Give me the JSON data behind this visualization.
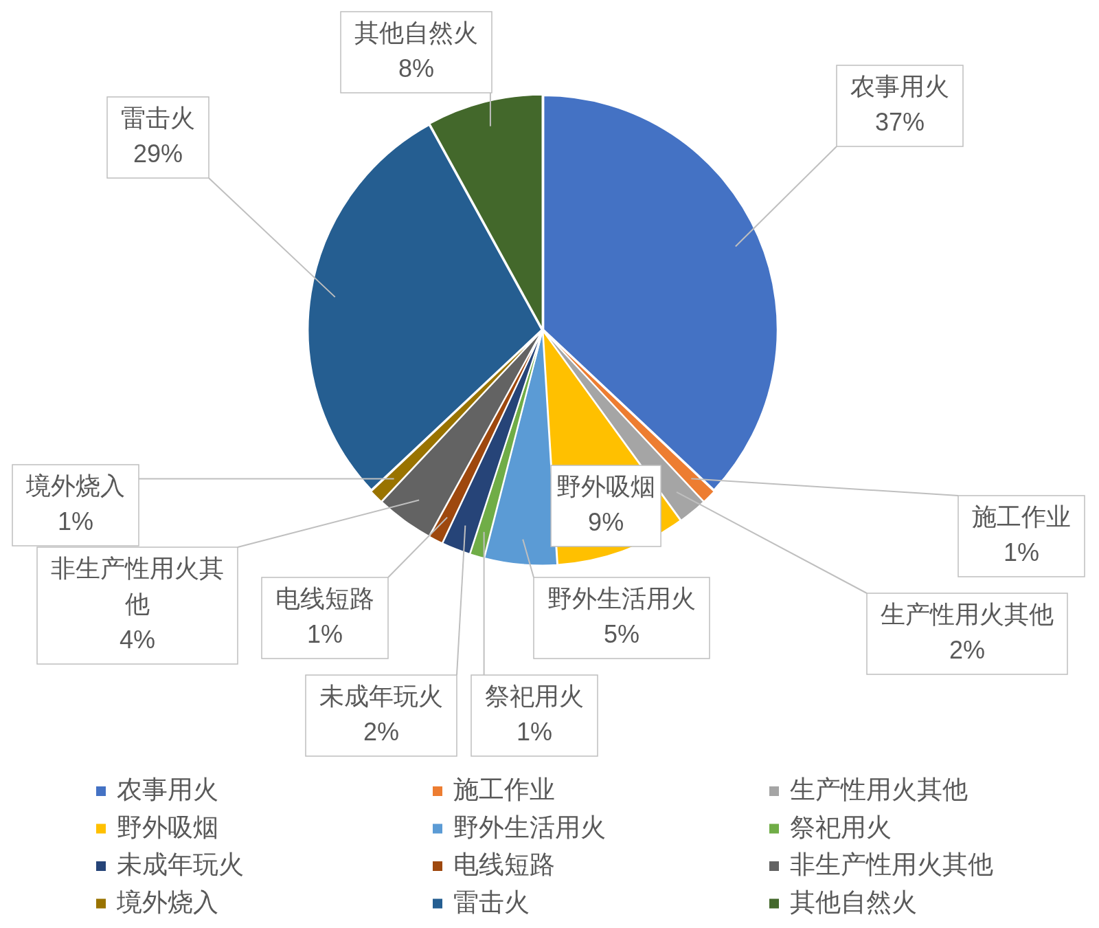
{
  "chart_data": {
    "type": "pie",
    "categories": [
      "农事用火",
      "施工作业",
      "生产性用火其他",
      "野外吸烟",
      "野外生活用火",
      "祭祀用火",
      "未成年玩火",
      "电线短路",
      "非生产性用火其他",
      "境外烧入",
      "雷击火",
      "其他自然火"
    ],
    "values": [
      37,
      1,
      2,
      9,
      5,
      1,
      2,
      1,
      4,
      1,
      29,
      8
    ],
    "colors": [
      "#4472c4",
      "#ed7d31",
      "#a5a5a5",
      "#ffc000",
      "#5b9bd5",
      "#70ad47",
      "#264478",
      "#9e480e",
      "#636363",
      "#997300",
      "#255e91",
      "#43682b"
    ],
    "value_labels": [
      "37%",
      "1%",
      "2%",
      "9%",
      "5%",
      "1%",
      "2%",
      "1%",
      "4%",
      "1%",
      "29%",
      "8%"
    ],
    "legend": "bottom"
  }
}
